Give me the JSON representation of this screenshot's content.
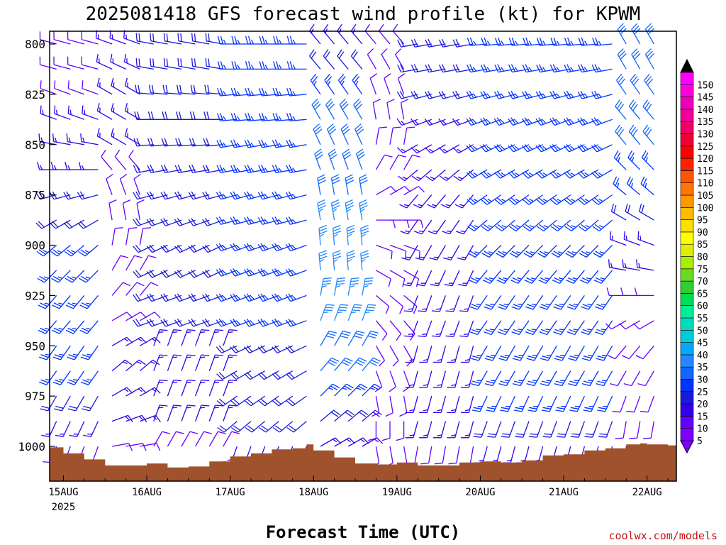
{
  "chart_data": {
    "type": "wind-barb profile",
    "title": "2025081418 GFS forecast wind profile (kt) for KPWM",
    "xlabel": "Forecast Time (UTC)",
    "credit": "coolwx.com/models",
    "y_ticks": [
      {
        "label": "800",
        "value": 800
      },
      {
        "label": "825",
        "value": 825
      },
      {
        "label": "850",
        "value": 850
      },
      {
        "label": "875",
        "value": 875
      },
      {
        "label": "900",
        "value": 900
      },
      {
        "label": "925",
        "value": 925
      },
      {
        "label": "950",
        "value": 950
      },
      {
        "label": "975",
        "value": 975
      },
      {
        "label": "1000",
        "value": 1000
      }
    ],
    "x_ticks": [
      {
        "label": "15AUG",
        "sub": "2025",
        "hour": 0
      },
      {
        "label": "16AUG",
        "sub": "",
        "hour": 24
      },
      {
        "label": "17AUG",
        "sub": "",
        "hour": 48
      },
      {
        "label": "18AUG",
        "sub": "",
        "hour": 72
      },
      {
        "label": "19AUG",
        "sub": "",
        "hour": 96
      },
      {
        "label": "20AUG",
        "sub": "",
        "hour": 120
      },
      {
        "label": "21AUG",
        "sub": "",
        "hour": 144
      },
      {
        "label": "22AUG",
        "sub": "",
        "hour": 168
      }
    ],
    "x_range_hours": [
      -6,
      174
    ],
    "y_range": [
      795,
      1018
    ],
    "pressure_levels": [
      800,
      812.5,
      825,
      837.5,
      850,
      862.5,
      875,
      887.5,
      900,
      912.5,
      925,
      937.5,
      950,
      962.5,
      975,
      987.5,
      1000
    ],
    "colorbar": {
      "levels": [
        5,
        10,
        15,
        20,
        25,
        30,
        35,
        40,
        45,
        50,
        55,
        60,
        65,
        70,
        75,
        80,
        85,
        90,
        95,
        100,
        105,
        110,
        115,
        120,
        125,
        130,
        135,
        140,
        145,
        150
      ],
      "labels": [
        "5",
        "10",
        "15",
        "20",
        "25",
        "30",
        "35",
        "40",
        "45",
        "50",
        "55",
        "60",
        "65",
        "70",
        "75",
        "80",
        "85",
        "90",
        "95",
        "100",
        "105",
        "110",
        "115",
        "120",
        "125",
        "130",
        "135",
        "140",
        "145",
        "150"
      ],
      "colors": [
        "#7f00ff",
        "#6600ff",
        "#3300ee",
        "#1a1ad9",
        "#0033ff",
        "#1166ff",
        "#2288ff",
        "#00aaff",
        "#00ccdd",
        "#00ddbb",
        "#00ee99",
        "#00dd55",
        "#33cc33",
        "#66dd22",
        "#aaee00",
        "#ddee00",
        "#ffff00",
        "#ffdd00",
        "#ffbb00",
        "#ff9900",
        "#ff7700",
        "#ff5500",
        "#ff2200",
        "#ff0000",
        "#ee0033",
        "#ee0066",
        "#ee0099",
        "#ee00bb",
        "#ff00dd",
        "#ff00ff"
      ],
      "low_arrow_color": "#7f00ff",
      "high_arrow_color": "#000000"
    },
    "terrain": {
      "color": "#a0522d",
      "hours": [
        -6,
        0,
        6,
        12,
        18,
        24,
        30,
        36,
        42,
        48,
        54,
        60,
        66,
        70,
        72,
        78,
        84,
        90,
        96,
        102,
        108,
        114,
        120,
        126,
        132,
        138,
        144,
        150,
        156,
        162,
        166,
        168,
        174
      ],
      "pressure": [
        1000.5,
        1003.5,
        1006.5,
        1009.5,
        1009.5,
        1008.5,
        1010.5,
        1010.0,
        1007.5,
        1005.0,
        1003.5,
        1001.5,
        1001.0,
        999.0,
        1002.0,
        1005.5,
        1008.5,
        1009.0,
        1008.0,
        1009.5,
        1009.5,
        1008.0,
        1007.5,
        1008.0,
        1007.0,
        1004.5,
        1004.0,
        1002.0,
        1001.0,
        999.0,
        998.5,
        999.0,
        999.5
      ]
    },
    "wind": {
      "note": "speed (kt) and direction (deg from) per time segment, per pressure level",
      "levels": [
        800,
        812.5,
        825,
        837.5,
        850,
        862.5,
        875,
        887.5,
        900,
        912.5,
        925,
        937.5,
        950,
        962.5,
        975,
        987.5,
        1000
      ],
      "segments": [
        {
          "hour_start": -6,
          "hour_end": 12,
          "spd": [
            10,
            10,
            10,
            15,
            15,
            15,
            20,
            20,
            25,
            25,
            25,
            25,
            25,
            25,
            20,
            15,
            10
          ],
          "dir": [
            285,
            285,
            290,
            290,
            280,
            270,
            255,
            240,
            230,
            225,
            220,
            220,
            215,
            215,
            210,
            205,
            200
          ]
        },
        {
          "hour_start": 12,
          "hour_end": 24,
          "spd": [
            15,
            15,
            15,
            15,
            15,
            10,
            10,
            10,
            10,
            10,
            10,
            10,
            15,
            15,
            15,
            15,
            10
          ],
          "dir": [
            290,
            295,
            300,
            300,
            300,
            320,
            340,
            350,
            10,
            30,
            40,
            60,
            60,
            50,
            60,
            70,
            80
          ]
        },
        {
          "hour_start": 24,
          "hour_end": 48,
          "spd": [
            20,
            20,
            20,
            20,
            20,
            20,
            20,
            20,
            20,
            20,
            20,
            20,
            15,
            15,
            15,
            15,
            10
          ],
          "dir": [
            280,
            280,
            275,
            270,
            265,
            260,
            255,
            250,
            245,
            245,
            250,
            250,
            20,
            20,
            20,
            20,
            30
          ]
        },
        {
          "hour_start": 48,
          "hour_end": 72,
          "spd": [
            25,
            25,
            25,
            25,
            25,
            25,
            25,
            25,
            25,
            25,
            25,
            25,
            20,
            20,
            20,
            20,
            15
          ],
          "dir": [
            270,
            270,
            265,
            265,
            260,
            260,
            255,
            255,
            250,
            250,
            250,
            250,
            245,
            240,
            235,
            230,
            200
          ]
        },
        {
          "hour_start": 72,
          "hour_end": 90,
          "spd": [
            15,
            20,
            25,
            30,
            30,
            30,
            30,
            35,
            35,
            35,
            35,
            35,
            30,
            30,
            25,
            20,
            15
          ],
          "dir": [
            320,
            320,
            325,
            330,
            335,
            340,
            350,
            350,
            355,
            355,
            10,
            20,
            30,
            40,
            45,
            50,
            60
          ]
        },
        {
          "hour_start": 90,
          "hour_end": 102,
          "spd": [
            10,
            10,
            10,
            10,
            10,
            10,
            10,
            10,
            10,
            10,
            10,
            10,
            10,
            10,
            10,
            10,
            10
          ],
          "dir": [
            320,
            330,
            340,
            350,
            10,
            30,
            60,
            90,
            110,
            120,
            130,
            140,
            150,
            160,
            170,
            180,
            170
          ]
        },
        {
          "hour_start": 102,
          "hour_end": 120,
          "spd": [
            20,
            20,
            20,
            15,
            15,
            15,
            15,
            15,
            15,
            15,
            15,
            15,
            15,
            15,
            15,
            15,
            10
          ],
          "dir": [
            260,
            260,
            255,
            250,
            240,
            230,
            220,
            215,
            210,
            205,
            200,
            200,
            195,
            195,
            195,
            195,
            190
          ]
        },
        {
          "hour_start": 120,
          "hour_end": 160,
          "spd": [
            25,
            25,
            25,
            25,
            25,
            25,
            25,
            25,
            25,
            25,
            25,
            25,
            25,
            25,
            25,
            20,
            15
          ],
          "dir": [
            265,
            260,
            255,
            250,
            245,
            240,
            235,
            230,
            225,
            220,
            215,
            215,
            210,
            210,
            205,
            200,
            195
          ]
        },
        {
          "hour_start": 160,
          "hour_end": 174,
          "spd": [
            30,
            30,
            30,
            30,
            30,
            25,
            25,
            20,
            15,
            15,
            10,
            10,
            10,
            10,
            10,
            10,
            10
          ],
          "dir": [
            330,
            330,
            325,
            320,
            320,
            315,
            310,
            300,
            290,
            280,
            270,
            240,
            220,
            210,
            200,
            190,
            180
          ]
        }
      ]
    }
  }
}
